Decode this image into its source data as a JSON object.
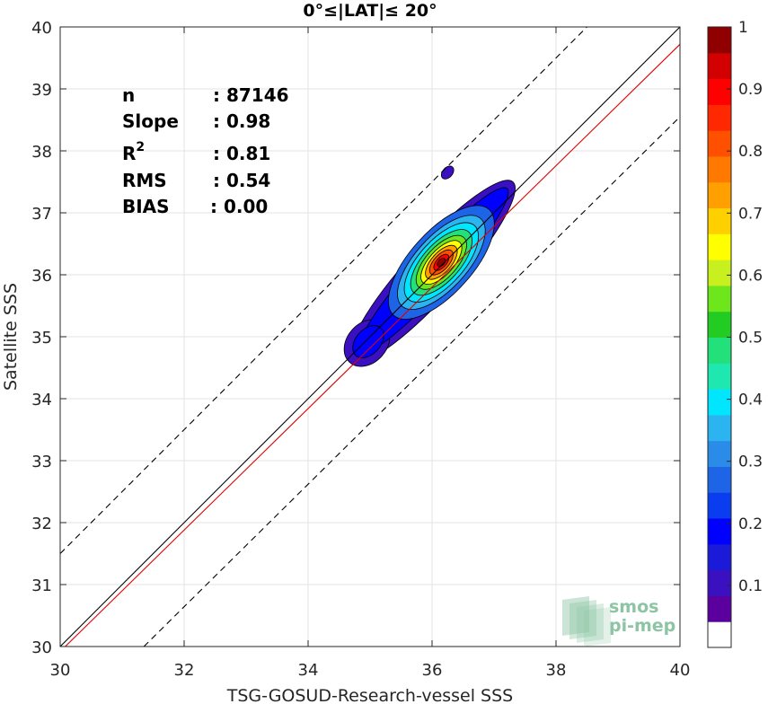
{
  "chart_data": {
    "type": "scatter",
    "title": "0°≤|LAT|≤ 20°",
    "xlabel": "TSG-GOSUD-Research-vessel SSS",
    "ylabel": "Satellite SSS",
    "xlim": [
      30,
      40
    ],
    "ylim": [
      30,
      40
    ],
    "xticks": [
      "30",
      "32",
      "34",
      "36",
      "38",
      "40"
    ],
    "yticks": [
      "30",
      "31",
      "32",
      "33",
      "34",
      "35",
      "36",
      "37",
      "38",
      "39",
      "40"
    ],
    "grid": true,
    "stats": [
      {
        "label": "n",
        "value": ": 87146"
      },
      {
        "label": "Slope",
        "value": ": 0.98"
      },
      {
        "label": "R",
        "sup": "2",
        "value": ": 0.81"
      },
      {
        "label": "RMS",
        "value": ": 0.54"
      },
      {
        "label": "BIAS",
        "value": ": 0.00"
      }
    ],
    "lines": [
      {
        "name": "identity",
        "x": [
          30,
          40
        ],
        "y": [
          30,
          40
        ],
        "color": "#000000",
        "style": "solid"
      },
      {
        "name": "regression",
        "x": [
          30,
          40
        ],
        "y": [
          29.92,
          39.72
        ],
        "color": "#e00000",
        "style": "solid"
      },
      {
        "name": "upper-bound",
        "x": [
          30,
          38.5
        ],
        "y": [
          31.5,
          40
        ],
        "color": "#000000",
        "style": "dashed"
      },
      {
        "name": "lower-bound",
        "x": [
          31.35,
          40
        ],
        "y": [
          30,
          38.55
        ],
        "color": "#000000",
        "style": "dashed"
      }
    ],
    "density_contours": {
      "normalized_peak": 1.0,
      "levels": [
        0.05,
        0.1,
        0.2,
        0.3,
        0.4,
        0.5,
        0.6,
        0.7,
        0.8,
        0.9
      ],
      "main_mode": {
        "x": 36.15,
        "y": 36.2
      },
      "secondary_mode": {
        "x": 34.95,
        "y": 34.9
      },
      "isolated_patch": {
        "x": 36.25,
        "y": 37.65
      }
    },
    "colorbar": {
      "ticks": [
        "0.1",
        "0.2",
        "0.3",
        "0.4",
        "0.5",
        "0.6",
        "0.7",
        "0.8",
        "0.9",
        "1"
      ],
      "range": [
        0,
        1
      ],
      "colors": [
        "#ffffff",
        "#5b009e",
        "#3a10c0",
        "#1a1ad8",
        "#0000ff",
        "#0a3cf0",
        "#1e64e6",
        "#2a8ce8",
        "#2bb4f0",
        "#00e6ff",
        "#1ee8b0",
        "#22e07a",
        "#22cc22",
        "#6ee61c",
        "#c8f01e",
        "#ffff00",
        "#ffd000",
        "#ffa000",
        "#ff7800",
        "#ff5000",
        "#ff2800",
        "#ff0000",
        "#d20000",
        "#900000"
      ]
    },
    "watermark": [
      "smos",
      "pi-mep"
    ]
  }
}
